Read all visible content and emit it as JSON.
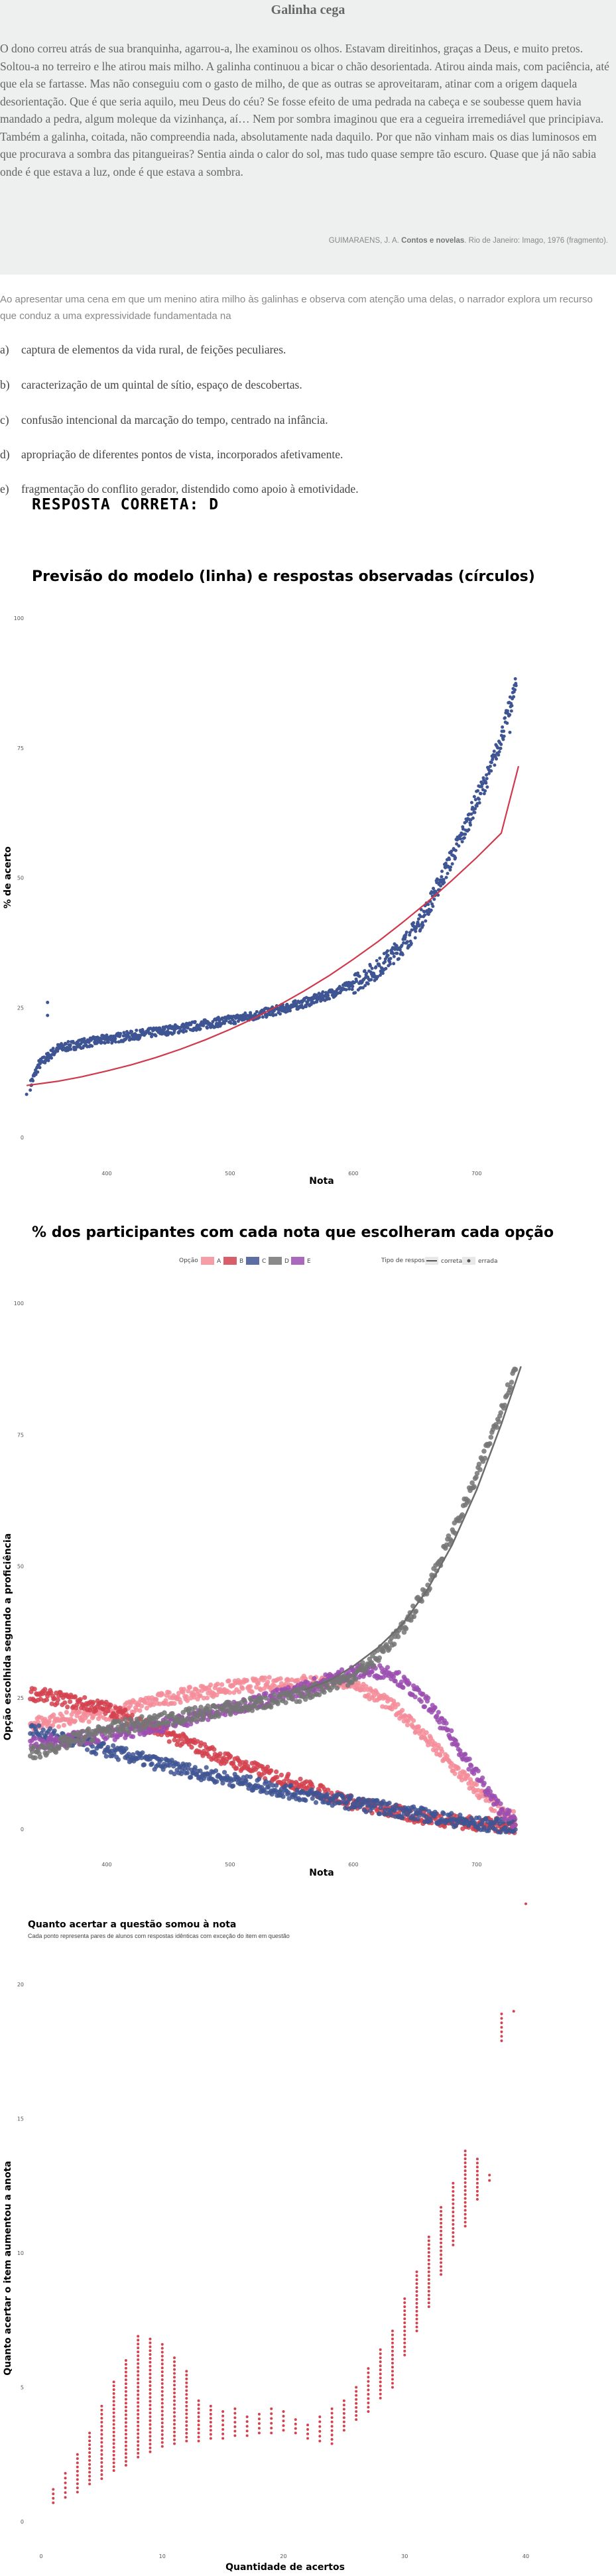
{
  "question": {
    "title": "Galinha cega",
    "paragraphs": [
      "O dono correu atrás de sua branquinha, agarrou-a, lhe examinou os olhos. Estavam direitinhos, graças a Deus, e muito pretos. Soltou-a no terreiro e lhe atirou mais milho. A galinha continuou a bicar o chão desorientada. Atirou ainda mais, com paciência, até que ela se fartasse. Mas não conseguiu com o gasto de milho, de que as outras se aproveitaram, atinar com a origem daquela desorientação. Que é que seria aquilo, meu Deus do céu? Se fosse efeito de uma pedrada na cabeça e se soubesse quem havia mandado a pedra, algum moleque da vizinhança, aí… Nem por sombra imaginou que era a cegueira irremediável que principiava.",
      "Também a galinha, coitada, não compreendia nada, absolutamente nada daquilo. Por que não vinham mais os dias luminosos em que procurava a sombra das pitangueiras? Sentia ainda o calor do sol, mas tudo quase sempre tão escuro. Quase que já não sabia onde é que estava a luz, onde é que estava a sombra."
    ],
    "citation_prefix": "GUIMARAENS, J. A.",
    "citation_bold": "Contos e novelas",
    "citation_suffix": ". Rio de Janeiro: Imago, 1976 (fragmento).",
    "prompt": "Ao apresentar uma cena em que um menino atira milho às galinhas e observa com atenção uma delas, o narrador explora um recurso que conduz a uma expressividade fundamentada na",
    "alternatives": [
      {
        "letter": "a)",
        "text": "captura de elementos da vida rural, de feições peculiares."
      },
      {
        "letter": "b)",
        "text": "caracterização de um quintal de sítio, espaço de descobertas."
      },
      {
        "letter": "c)",
        "text": "confusão intencional da marcação do tempo, centrado na infância."
      },
      {
        "letter": "d)",
        "text": "apropriação de diferentes pontos de vista, incorporados afetivamente."
      },
      {
        "letter": "e)",
        "text": "fragmentação do conflito gerador, distendido como apoio à emotividade."
      }
    ],
    "answer": "RESPOSTA CORRETA: D"
  },
  "chart_data": [
    {
      "type": "scatter",
      "title": "Previsão do modelo (linha) e respostas observadas (círculos)",
      "xlabel": "Nota",
      "ylabel": "% de acerto",
      "xticks": [
        400,
        500,
        600,
        700
      ],
      "yticks": [
        0,
        25,
        50,
        75,
        100
      ],
      "xlim": [
        330,
        740
      ],
      "ylim": [
        0,
        100
      ],
      "colors": {
        "points": "#3f5593",
        "line": "#d0384c"
      },
      "model_line": {
        "x": [
          335,
          360,
          380,
          400,
          420,
          440,
          460,
          480,
          500,
          520,
          540,
          560,
          580,
          600,
          620,
          640,
          660,
          680,
          700,
          720,
          734
        ],
        "y": [
          10.0,
          10.8,
          11.7,
          12.8,
          14.0,
          15.4,
          17.0,
          18.8,
          20.8,
          23.0,
          25.5,
          28.2,
          31.1,
          34.3,
          37.7,
          41.4,
          45.3,
          49.5,
          53.9,
          58.6,
          71.5
        ]
      },
      "observed": {
        "x": [
          335,
          345,
          360,
          380,
          400,
          420,
          440,
          460,
          480,
          500,
          520,
          540,
          560,
          580,
          600,
          620,
          640,
          650,
          660,
          670,
          680,
          690,
          700,
          710,
          720,
          732
        ],
        "y": [
          8.3,
          14.0,
          17.1,
          18.1,
          18.9,
          19.6,
          20.3,
          21.0,
          21.8,
          22.6,
          23.5,
          24.6,
          25.9,
          27.5,
          29.5,
          32.5,
          37.0,
          40.0,
          44.0,
          49.0,
          54.0,
          59.0,
          65.0,
          70.0,
          77.0,
          87.0
        ]
      }
    },
    {
      "type": "scatter",
      "title": "% dos participantes com cada nota que escolheram cada opção",
      "xlabel": "Nota",
      "ylabel": "Opção escolhida segundo a proficiência",
      "xticks": [
        400,
        500,
        600,
        700
      ],
      "yticks": [
        0,
        25,
        50,
        75,
        100
      ],
      "xlim": [
        330,
        740
      ],
      "ylim": [
        0,
        100
      ],
      "legend": {
        "option_title": "Opção",
        "options": [
          {
            "name": "A",
            "color": "#f48c99"
          },
          {
            "name": "B",
            "color": "#d3424f"
          },
          {
            "name": "C",
            "color": "#3f5593"
          },
          {
            "name": "D",
            "color": "#767676"
          },
          {
            "name": "E",
            "color": "#9b4fb0"
          }
        ],
        "type_title": "Tipo de resposta",
        "types": [
          "correta",
          "errada"
        ]
      },
      "series": [
        {
          "name": "A",
          "x": [
            335,
            400,
            450,
            500,
            550,
            600,
            640,
            680,
            720,
            732
          ],
          "y": [
            20,
            22,
            25,
            27,
            28,
            28,
            22,
            12,
            3,
            2
          ]
        },
        {
          "name": "B",
          "x": [
            335,
            400,
            450,
            500,
            550,
            600,
            650,
            700,
            732
          ],
          "y": [
            26,
            23,
            18,
            13,
            9,
            5,
            2.5,
            1,
            0.5
          ]
        },
        {
          "name": "C",
          "x": [
            335,
            400,
            450,
            500,
            550,
            600,
            650,
            700,
            732
          ],
          "y": [
            19,
            15,
            12,
            9.5,
            7,
            5,
            3,
            1,
            0.5
          ]
        },
        {
          "name": "D",
          "x": [
            335,
            400,
            450,
            500,
            550,
            600,
            620,
            640,
            660,
            680,
            700,
            720,
            735
          ],
          "y": [
            14,
            19,
            21,
            23,
            25,
            29,
            33,
            38,
            46,
            56,
            67,
            80,
            90
          ]
        },
        {
          "name": "E",
          "x": [
            335,
            400,
            450,
            500,
            550,
            600,
            630,
            660,
            690,
            715,
            732
          ],
          "y": [
            16,
            18,
            20,
            23,
            26,
            30,
            30,
            24,
            14,
            5,
            1
          ]
        }
      ]
    },
    {
      "type": "scatter",
      "title": "Quanto acertar a questão somou à nota",
      "subtitle": "Cada ponto representa pares de alunos com respostas idênticas com exceção do item em questão",
      "xlabel": "Quantidade de acertos",
      "ylabel": "Quanto acertar o item aumentou a anota",
      "xticks": [
        0,
        10,
        20,
        30,
        40
      ],
      "yticks": [
        0,
        5,
        10,
        15,
        20
      ],
      "xlim": [
        -1.5,
        45
      ],
      "ylim": [
        -0.5,
        23.5
      ],
      "color": "#d3424f",
      "columns": {
        "x": [
          1,
          2,
          3,
          4,
          5,
          6,
          7,
          8,
          9,
          10,
          11,
          12,
          13,
          14,
          15,
          16,
          17,
          18,
          19,
          20,
          21,
          22,
          23,
          24,
          25,
          26,
          27,
          28,
          29,
          30,
          31,
          32,
          33,
          34,
          35,
          36,
          37,
          38,
          39,
          40
        ],
        "low": [
          0.7,
          0.9,
          1.1,
          1.4,
          1.6,
          1.9,
          2.1,
          2.4,
          2.6,
          2.8,
          2.9,
          3.0,
          3.0,
          3.1,
          3.1,
          3.2,
          3.2,
          3.3,
          3.3,
          3.4,
          3.3,
          3.1,
          3.0,
          2.9,
          3.4,
          3.8,
          4.1,
          4.6,
          5.0,
          6.2,
          7.1,
          8.0,
          9.2,
          10.3,
          11.0,
          12.0,
          12.7,
          17.9,
          19.0,
          23.0
        ],
        "high": [
          1.2,
          1.8,
          2.5,
          3.3,
          4.3,
          5.2,
          6.0,
          6.9,
          6.8,
          6.6,
          6.1,
          5.6,
          4.5,
          4.3,
          4.1,
          4.2,
          3.9,
          4.0,
          4.2,
          4.1,
          3.8,
          3.6,
          3.9,
          4.2,
          4.5,
          5.0,
          5.7,
          6.4,
          7.1,
          8.3,
          9.3,
          10.6,
          11.7,
          12.6,
          13.8,
          13.5,
          12.9,
          18.9,
          19.0,
          23.0
        ]
      }
    }
  ]
}
